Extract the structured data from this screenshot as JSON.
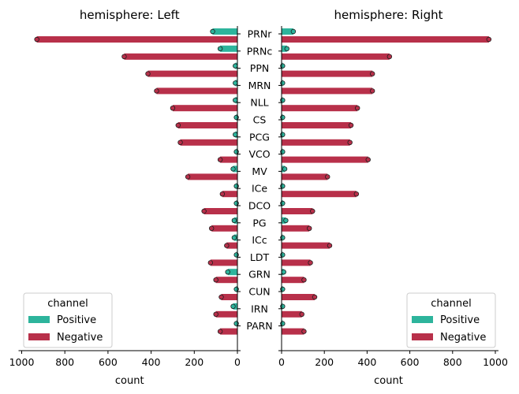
{
  "chart_data": {
    "type": "bar",
    "orientation": "horizontal-mirrored",
    "categories": [
      "PRNr",
      "PRNc",
      "PPN",
      "MRN",
      "NLL",
      "CS",
      "PCG",
      "VCO",
      "MV",
      "ICe",
      "DCO",
      "PG",
      "ICc",
      "LDT",
      "GRN",
      "CUN",
      "IRN",
      "PARN"
    ],
    "panels": [
      {
        "title": "hemisphere: Left",
        "xlabel": "count",
        "xlim": [
          1000,
          0
        ],
        "xticks": [
          "1000",
          "800",
          "600",
          "400",
          "200",
          "0"
        ],
        "series": [
          {
            "name": "Positive",
            "values": [
              115,
              80,
              10,
              10,
              10,
              5,
              10,
              5,
              20,
              5,
              5,
              15,
              15,
              5,
              45,
              5,
              20,
              5
            ]
          },
          {
            "name": "Negative",
            "values": [
              930,
              525,
              415,
              375,
              300,
              275,
              265,
              80,
              230,
              70,
              155,
              120,
              50,
              125,
              100,
              75,
              100,
              80
            ]
          }
        ]
      },
      {
        "title": "hemisphere: Right",
        "xlabel": "count",
        "xlim": [
          0,
          1000
        ],
        "xticks": [
          "0",
          "200",
          "400",
          "600",
          "800",
          "1000"
        ],
        "series": [
          {
            "name": "Positive",
            "values": [
              55,
              25,
              5,
              5,
              5,
              5,
              5,
              5,
              15,
              5,
              5,
              20,
              5,
              5,
              10,
              5,
              5,
              5
            ]
          },
          {
            "name": "Negative",
            "values": [
              970,
              505,
              425,
              425,
              355,
              325,
              320,
              405,
              215,
              350,
              145,
              130,
              225,
              135,
              105,
              155,
              95,
              105
            ]
          }
        ]
      }
    ],
    "legend": {
      "title": "channel",
      "entries": [
        "Positive",
        "Negative"
      ],
      "placement": "lower"
    },
    "colors": {
      "Positive": "#2db49c",
      "Negative": "#b8304a",
      "edge": "#1e1e1e"
    }
  }
}
